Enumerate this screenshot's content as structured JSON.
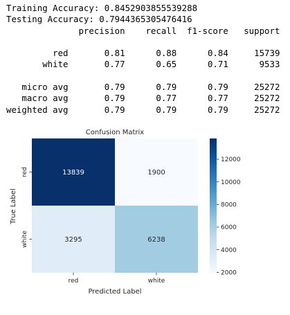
{
  "report": {
    "training_label": "Training Accuracy:",
    "training_value": "0.8452903855539288",
    "testing_label": "Testing Accuracy:",
    "testing_value": "0.7944365305476416",
    "columns": [
      "precision",
      "recall",
      "f1-score",
      "support"
    ],
    "class_rows": [
      {
        "label": "red",
        "precision": "0.81",
        "recall": "0.88",
        "f1": "0.84",
        "support": "15739"
      },
      {
        "label": "white",
        "precision": "0.77",
        "recall": "0.65",
        "f1": "0.71",
        "support": "9533"
      }
    ],
    "avg_rows": [
      {
        "label": "micro avg",
        "precision": "0.79",
        "recall": "0.79",
        "f1": "0.79",
        "support": "25272"
      },
      {
        "label": "macro avg",
        "precision": "0.79",
        "recall": "0.77",
        "f1": "0.77",
        "support": "25272"
      },
      {
        "label": "weighted avg",
        "precision": "0.79",
        "recall": "0.79",
        "f1": "0.79",
        "support": "25272"
      }
    ]
  },
  "chart_data": {
    "type": "heatmap",
    "title": "Confusion Matrix",
    "xlabel": "Predicted Label",
    "ylabel": "True Label",
    "x_categories": [
      "red",
      "white"
    ],
    "y_categories": [
      "red",
      "white"
    ],
    "values": [
      [
        13839,
        1900
      ],
      [
        3295,
        6238
      ]
    ],
    "colormap": "Blues",
    "colorbar": {
      "min": 1900,
      "max": 13839,
      "ticks": [
        2000,
        4000,
        6000,
        8000,
        10000,
        12000
      ]
    },
    "annotation_colors": {
      "dark_cell": "#ffffff",
      "light_cell": "#262626"
    }
  }
}
